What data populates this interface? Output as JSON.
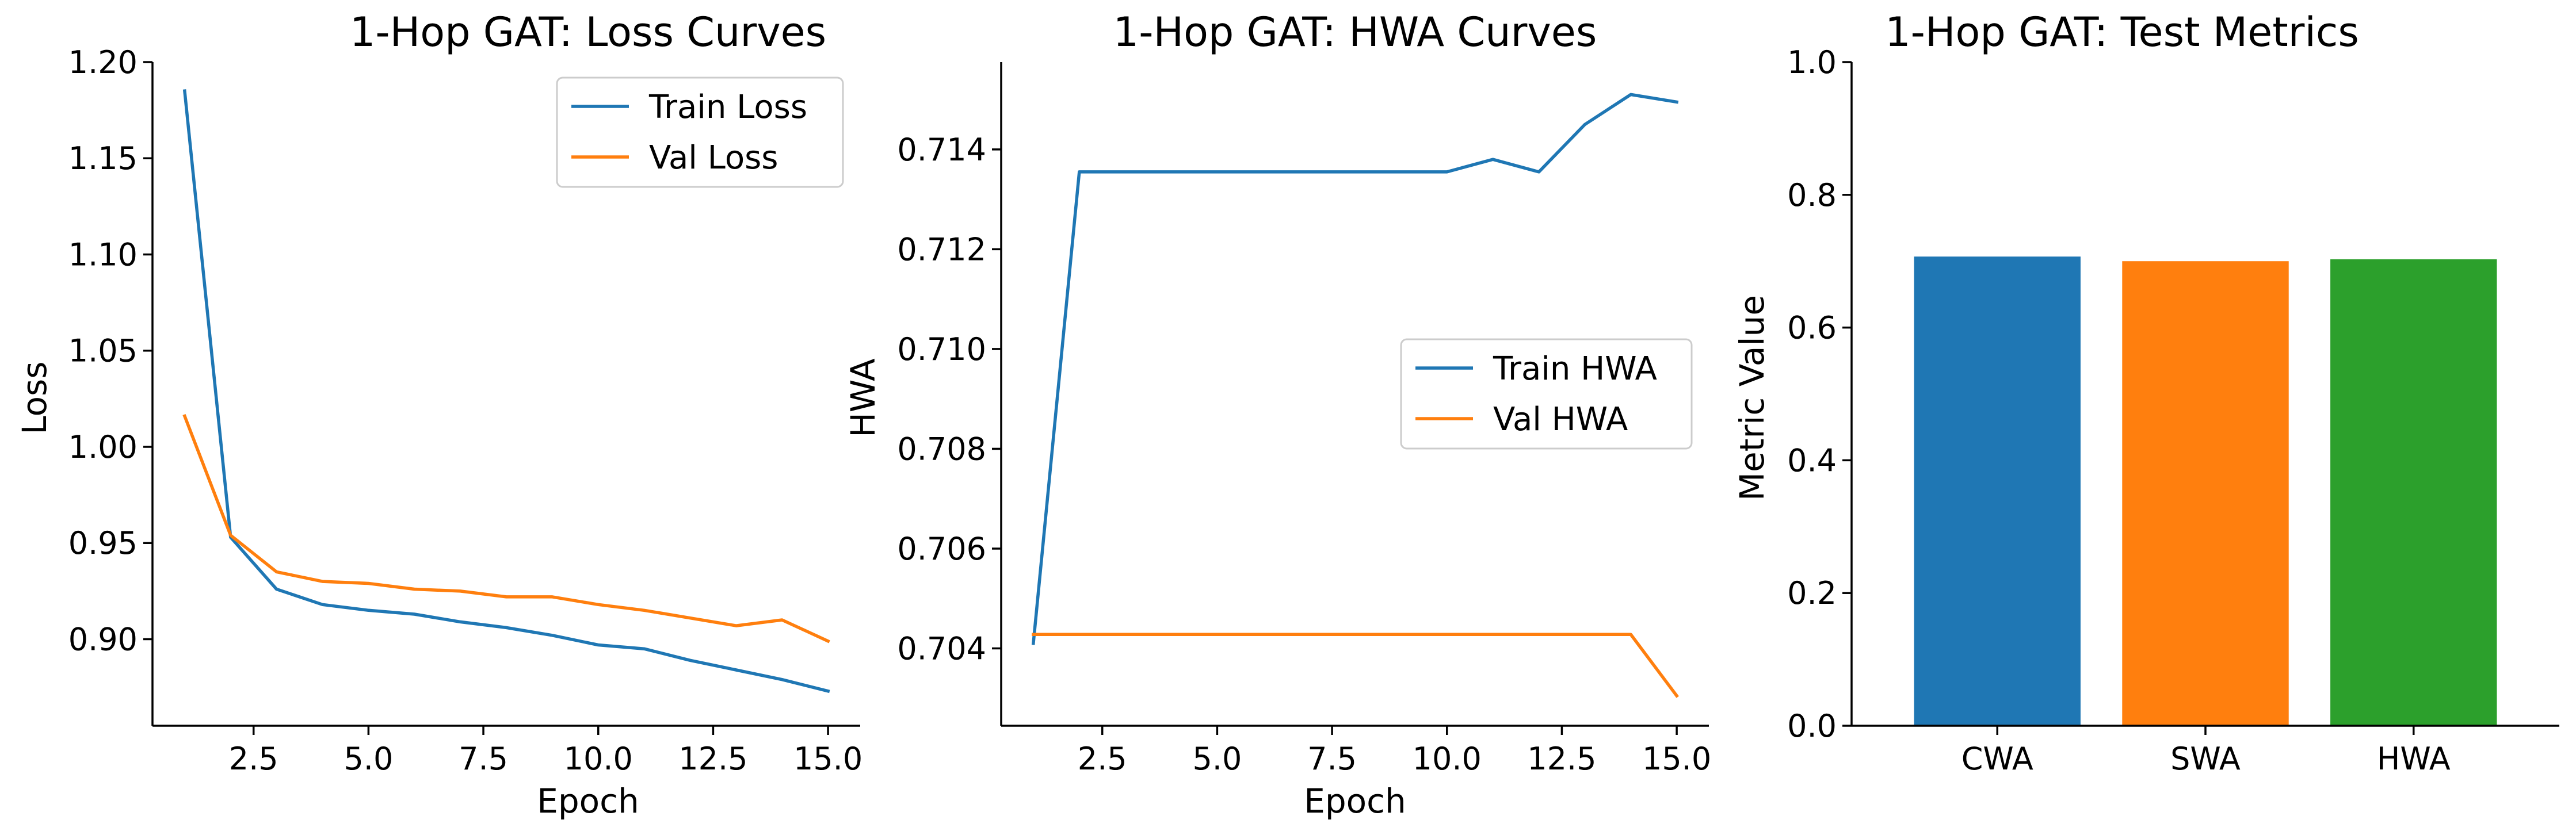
{
  "chart_data": [
    {
      "type": "line",
      "title": "1-Hop GAT: Loss Curves",
      "xlabel": "Epoch",
      "ylabel": "Loss",
      "xlim": [
        0.3,
        15.7
      ],
      "ylim": [
        0.855,
        1.2
      ],
      "xticks": [
        2.5,
        5.0,
        7.5,
        10.0,
        12.5,
        15.0
      ],
      "xtick_labels": [
        "2.5",
        "5.0",
        "7.5",
        "10.0",
        "12.5",
        "15.0"
      ],
      "yticks": [
        0.9,
        0.95,
        1.0,
        1.05,
        1.1,
        1.15,
        1.2
      ],
      "ytick_labels": [
        "0.90",
        "0.95",
        "1.00",
        "1.05",
        "1.10",
        "1.15",
        "1.20"
      ],
      "x": [
        1,
        2,
        3,
        4,
        5,
        6,
        7,
        8,
        9,
        10,
        11,
        12,
        13,
        14,
        15
      ],
      "series": [
        {
          "name": "Train Loss",
          "color": "#1f77b4",
          "values": [
            1.185,
            0.953,
            0.926,
            0.918,
            0.915,
            0.913,
            0.909,
            0.906,
            0.902,
            0.897,
            0.895,
            0.889,
            0.884,
            0.879,
            0.873
          ]
        },
        {
          "name": "Val Loss",
          "color": "#ff7f0e",
          "values": [
            1.016,
            0.954,
            0.935,
            0.93,
            0.929,
            0.926,
            0.925,
            0.922,
            0.922,
            0.918,
            0.915,
            0.911,
            0.907,
            0.91,
            0.899
          ]
        }
      ],
      "legend": "upper-right",
      "grid": false
    },
    {
      "type": "line",
      "title": "1-Hop GAT: HWA Curves",
      "xlabel": "Epoch",
      "ylabel": "HWA",
      "xlim": [
        0.3,
        15.7
      ],
      "ylim": [
        0.70245,
        0.71575
      ],
      "xticks": [
        2.5,
        5.0,
        7.5,
        10.0,
        12.5,
        15.0
      ],
      "xtick_labels": [
        "2.5",
        "5.0",
        "7.5",
        "10.0",
        "12.5",
        "15.0"
      ],
      "yticks": [
        0.704,
        0.706,
        0.708,
        0.71,
        0.712,
        0.714
      ],
      "ytick_labels": [
        "0.704",
        "0.706",
        "0.708",
        "0.710",
        "0.712",
        "0.714"
      ],
      "x": [
        1,
        2,
        3,
        4,
        5,
        6,
        7,
        8,
        9,
        10,
        11,
        12,
        13,
        14,
        15
      ],
      "series": [
        {
          "name": "Train HWA",
          "color": "#1f77b4",
          "values": [
            0.7041,
            0.71355,
            0.71355,
            0.71355,
            0.71355,
            0.71355,
            0.71355,
            0.71355,
            0.71355,
            0.71355,
            0.7138,
            0.71355,
            0.7145,
            0.7151,
            0.71495
          ]
        },
        {
          "name": "Val HWA",
          "color": "#ff7f0e",
          "values": [
            0.70428,
            0.70428,
            0.70428,
            0.70428,
            0.70428,
            0.70428,
            0.70428,
            0.70428,
            0.70428,
            0.70428,
            0.70428,
            0.70428,
            0.70428,
            0.70428,
            0.70305
          ]
        }
      ],
      "legend": "center-right",
      "grid": false
    },
    {
      "type": "bar",
      "title": "1-Hop GAT: Test Metrics",
      "xlabel": "",
      "ylabel": "Metric Value",
      "ylim": [
        0,
        1.0
      ],
      "yticks": [
        0.0,
        0.2,
        0.4,
        0.6,
        0.8,
        1.0
      ],
      "ytick_labels": [
        "0.0",
        "0.2",
        "0.4",
        "0.6",
        "0.8",
        "1.0"
      ],
      "categories": [
        "CWA",
        "SWA",
        "HWA"
      ],
      "values": [
        0.707,
        0.7,
        0.703
      ],
      "colors": [
        "#1f77b4",
        "#ff7f0e",
        "#2ca02c"
      ],
      "grid": false
    }
  ]
}
